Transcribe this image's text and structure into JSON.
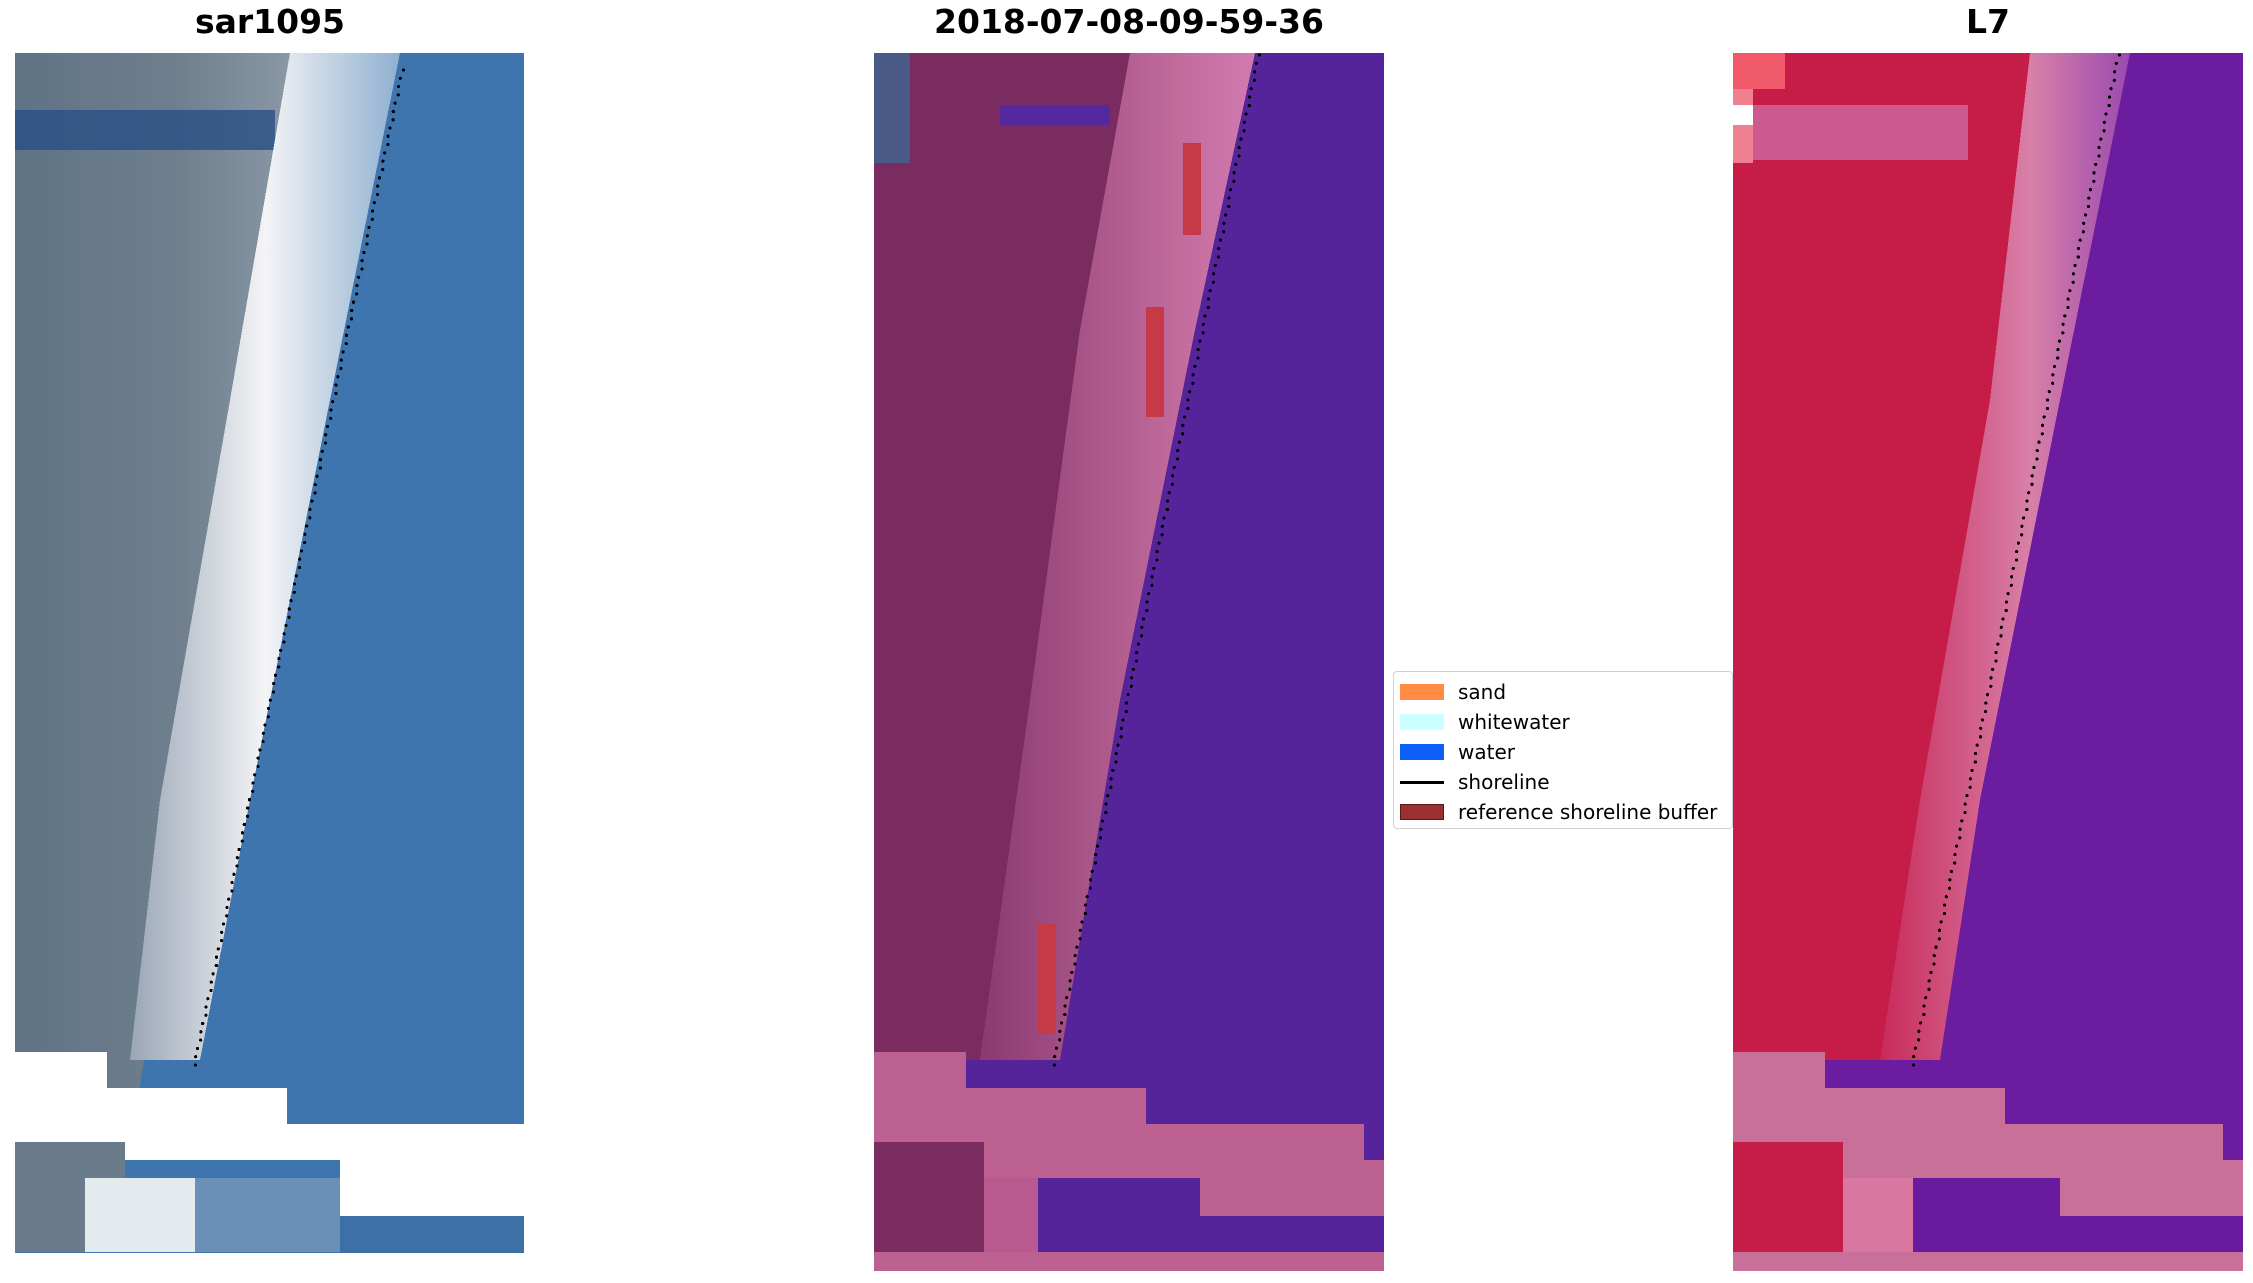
{
  "panels": [
    {
      "title": "sar1095",
      "style": "rgb"
    },
    {
      "title": "2018-07-08-09-59-36",
      "style": "classified"
    },
    {
      "title": "L7",
      "style": "falsecolor"
    }
  ],
  "legend": {
    "items": [
      {
        "label": "sand",
        "color": "#ff8c42",
        "kind": "patch"
      },
      {
        "label": "whitewater",
        "color": "#ccffff",
        "kind": "patch"
      },
      {
        "label": "water",
        "color": "#0b5ff5",
        "kind": "patch"
      },
      {
        "label": "shoreline",
        "color": "#000000",
        "kind": "line"
      },
      {
        "label": "reference shoreline buffer",
        "color": "#9b3030",
        "kind": "patch"
      }
    ]
  },
  "colors": {
    "rgb_land": "#6a7c8c",
    "rgb_water": "#3f76ad",
    "rgb_sand": "#e6edf0",
    "class_land": "#7a2c60",
    "class_beach": "#b35a90",
    "class_water": "#55239a",
    "class_buffer": "#c94048",
    "class_pink": "#bb6090",
    "fc_land": "#c61a48",
    "fc_beach": "#d06a90",
    "fc_water": "#6a1a9c"
  }
}
